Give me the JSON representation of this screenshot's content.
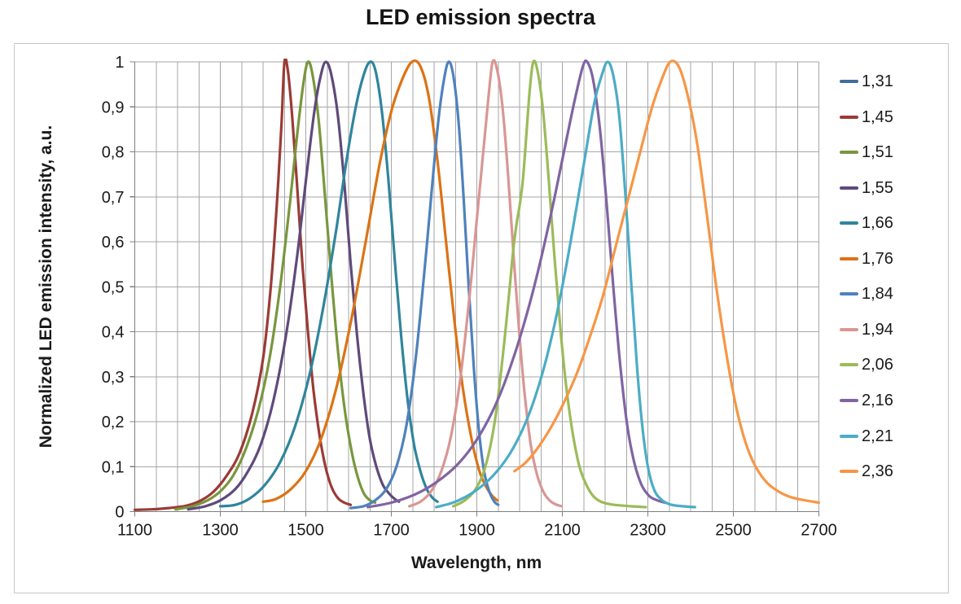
{
  "chart_data": {
    "type": "line",
    "title": "LED emission spectra",
    "xlabel": "Wavelength, nm",
    "ylabel": "Normalized LED emission intensity, a.u.",
    "xlim": [
      1100,
      2700
    ],
    "ylim": [
      0,
      1
    ],
    "x_major_tick_step": 200,
    "x_minor_grid_step": 50,
    "y_tick_step": 0.1,
    "x_tick_labels": [
      "1100",
      "1300",
      "1500",
      "1700",
      "1900",
      "2100",
      "2300",
      "2500",
      "2700"
    ],
    "y_tick_labels": [
      "1",
      "0,9",
      "0,8",
      "0,7",
      "0,6",
      "0,5",
      "0,4",
      "0,3",
      "0,2",
      "0,1",
      "0"
    ],
    "decimal_separator": ",",
    "grid": true,
    "legend_position": "right",
    "series": [
      {
        "name": "1,31",
        "color": "#3F6D9C",
        "peak_nm": 1310,
        "legend_only": true,
        "points": []
      },
      {
        "name": "1,45",
        "color": "#9A3B35",
        "peak_nm": 1450,
        "legend_only": false,
        "points": [
          [
            1100,
            0.004
          ],
          [
            1140,
            0.005
          ],
          [
            1180,
            0.008
          ],
          [
            1220,
            0.013
          ],
          [
            1255,
            0.025
          ],
          [
            1285,
            0.045
          ],
          [
            1315,
            0.08
          ],
          [
            1345,
            0.13
          ],
          [
            1375,
            0.22
          ],
          [
            1400,
            0.34
          ],
          [
            1418,
            0.5
          ],
          [
            1432,
            0.68
          ],
          [
            1443,
            0.86
          ],
          [
            1450,
            1.0
          ],
          [
            1458,
            0.98
          ],
          [
            1468,
            0.88
          ],
          [
            1480,
            0.72
          ],
          [
            1492,
            0.55
          ],
          [
            1505,
            0.4
          ],
          [
            1518,
            0.27
          ],
          [
            1532,
            0.17
          ],
          [
            1546,
            0.1
          ],
          [
            1560,
            0.055
          ],
          [
            1575,
            0.03
          ],
          [
            1590,
            0.02
          ],
          [
            1605,
            0.015
          ]
        ]
      },
      {
        "name": "1,51",
        "color": "#79963E",
        "peak_nm": 1505,
        "legend_only": false,
        "points": [
          [
            1195,
            0.005
          ],
          [
            1235,
            0.012
          ],
          [
            1270,
            0.025
          ],
          [
            1300,
            0.045
          ],
          [
            1330,
            0.08
          ],
          [
            1360,
            0.14
          ],
          [
            1390,
            0.23
          ],
          [
            1415,
            0.34
          ],
          [
            1440,
            0.5
          ],
          [
            1462,
            0.68
          ],
          [
            1480,
            0.84
          ],
          [
            1494,
            0.95
          ],
          [
            1505,
            1.0
          ],
          [
            1516,
            0.97
          ],
          [
            1530,
            0.87
          ],
          [
            1545,
            0.7
          ],
          [
            1560,
            0.52
          ],
          [
            1576,
            0.35
          ],
          [
            1592,
            0.22
          ],
          [
            1608,
            0.13
          ],
          [
            1622,
            0.075
          ],
          [
            1636,
            0.04
          ],
          [
            1650,
            0.025
          ],
          [
            1662,
            0.02
          ]
        ]
      },
      {
        "name": "1,55",
        "color": "#5F4A7A",
        "peak_nm": 1547,
        "legend_only": false,
        "points": [
          [
            1225,
            0.005
          ],
          [
            1265,
            0.012
          ],
          [
            1300,
            0.025
          ],
          [
            1335,
            0.05
          ],
          [
            1365,
            0.09
          ],
          [
            1395,
            0.15
          ],
          [
            1425,
            0.25
          ],
          [
            1455,
            0.4
          ],
          [
            1480,
            0.57
          ],
          [
            1502,
            0.75
          ],
          [
            1520,
            0.89
          ],
          [
            1535,
            0.97
          ],
          [
            1547,
            1.0
          ],
          [
            1560,
            0.97
          ],
          [
            1575,
            0.88
          ],
          [
            1590,
            0.73
          ],
          [
            1605,
            0.55
          ],
          [
            1620,
            0.39
          ],
          [
            1635,
            0.26
          ],
          [
            1650,
            0.16
          ],
          [
            1665,
            0.1
          ],
          [
            1680,
            0.06
          ],
          [
            1695,
            0.04
          ],
          [
            1708,
            0.028
          ],
          [
            1718,
            0.022
          ]
        ]
      },
      {
        "name": "1,66",
        "color": "#2F859C",
        "peak_nm": 1650,
        "legend_only": false,
        "points": [
          [
            1300,
            0.012
          ],
          [
            1335,
            0.015
          ],
          [
            1370,
            0.03
          ],
          [
            1405,
            0.06
          ],
          [
            1440,
            0.11
          ],
          [
            1475,
            0.19
          ],
          [
            1510,
            0.31
          ],
          [
            1540,
            0.45
          ],
          [
            1570,
            0.62
          ],
          [
            1595,
            0.78
          ],
          [
            1617,
            0.9
          ],
          [
            1635,
            0.97
          ],
          [
            1650,
            1.0
          ],
          [
            1663,
            0.98
          ],
          [
            1678,
            0.89
          ],
          [
            1693,
            0.74
          ],
          [
            1708,
            0.56
          ],
          [
            1723,
            0.39
          ],
          [
            1738,
            0.25
          ],
          [
            1753,
            0.15
          ],
          [
            1768,
            0.09
          ],
          [
            1783,
            0.05
          ],
          [
            1797,
            0.03
          ],
          [
            1808,
            0.022
          ]
        ]
      },
      {
        "name": "1,76",
        "color": "#DC7315",
        "peak_nm": 1755,
        "legend_only": false,
        "points": [
          [
            1400,
            0.022
          ],
          [
            1430,
            0.028
          ],
          [
            1465,
            0.05
          ],
          [
            1500,
            0.09
          ],
          [
            1535,
            0.16
          ],
          [
            1570,
            0.27
          ],
          [
            1605,
            0.42
          ],
          [
            1640,
            0.6
          ],
          [
            1672,
            0.77
          ],
          [
            1700,
            0.89
          ],
          [
            1725,
            0.96
          ],
          [
            1748,
            1.0
          ],
          [
            1768,
            0.99
          ],
          [
            1788,
            0.92
          ],
          [
            1808,
            0.78
          ],
          [
            1828,
            0.6
          ],
          [
            1848,
            0.42
          ],
          [
            1868,
            0.27
          ],
          [
            1888,
            0.16
          ],
          [
            1906,
            0.09
          ],
          [
            1922,
            0.055
          ],
          [
            1936,
            0.035
          ],
          [
            1948,
            0.025
          ]
        ]
      },
      {
        "name": "1,84",
        "color": "#4F81BD",
        "peak_nm": 1834,
        "legend_only": false,
        "points": [
          [
            1605,
            0.008
          ],
          [
            1635,
            0.012
          ],
          [
            1662,
            0.025
          ],
          [
            1688,
            0.05
          ],
          [
            1712,
            0.1
          ],
          [
            1735,
            0.19
          ],
          [
            1757,
            0.34
          ],
          [
            1777,
            0.53
          ],
          [
            1795,
            0.72
          ],
          [
            1810,
            0.87
          ],
          [
            1823,
            0.96
          ],
          [
            1834,
            1.0
          ],
          [
            1845,
            0.97
          ],
          [
            1857,
            0.87
          ],
          [
            1869,
            0.7
          ],
          [
            1881,
            0.5
          ],
          [
            1893,
            0.32
          ],
          [
            1905,
            0.18
          ],
          [
            1917,
            0.09
          ],
          [
            1929,
            0.045
          ],
          [
            1941,
            0.022
          ],
          [
            1950,
            0.015
          ]
        ]
      },
      {
        "name": "1,94",
        "color": "#D99694",
        "peak_nm": 1937,
        "legend_only": false,
        "points": [
          [
            1742,
            0.012
          ],
          [
            1768,
            0.022
          ],
          [
            1793,
            0.045
          ],
          [
            1817,
            0.09
          ],
          [
            1840,
            0.17
          ],
          [
            1862,
            0.3
          ],
          [
            1882,
            0.47
          ],
          [
            1900,
            0.65
          ],
          [
            1915,
            0.8
          ],
          [
            1927,
            0.92
          ],
          [
            1937,
            1.0
          ],
          [
            1948,
            0.98
          ],
          [
            1960,
            0.9
          ],
          [
            1973,
            0.75
          ],
          [
            1986,
            0.57
          ],
          [
            1999,
            0.4
          ],
          [
            2012,
            0.26
          ],
          [
            2026,
            0.15
          ],
          [
            2040,
            0.085
          ],
          [
            2055,
            0.045
          ],
          [
            2070,
            0.025
          ],
          [
            2085,
            0.016
          ],
          [
            2098,
            0.012
          ]
        ]
      },
      {
        "name": "2,06",
        "color": "#9BBB59",
        "peak_nm": 2032,
        "legend_only": false,
        "points": [
          [
            1845,
            0.012
          ],
          [
            1872,
            0.025
          ],
          [
            1897,
            0.05
          ],
          [
            1920,
            0.1
          ],
          [
            1942,
            0.2
          ],
          [
            1960,
            0.34
          ],
          [
            1975,
            0.48
          ],
          [
            1985,
            0.58
          ],
          [
            1993,
            0.64
          ],
          [
            2000,
            0.68
          ],
          [
            2008,
            0.74
          ],
          [
            2016,
            0.84
          ],
          [
            2024,
            0.94
          ],
          [
            2032,
            1.0
          ],
          [
            2042,
            0.98
          ],
          [
            2055,
            0.89
          ],
          [
            2068,
            0.74
          ],
          [
            2082,
            0.56
          ],
          [
            2096,
            0.4
          ],
          [
            2110,
            0.27
          ],
          [
            2125,
            0.17
          ],
          [
            2140,
            0.1
          ],
          [
            2156,
            0.06
          ],
          [
            2172,
            0.035
          ],
          [
            2190,
            0.022
          ],
          [
            2215,
            0.016
          ],
          [
            2245,
            0.013
          ],
          [
            2275,
            0.011
          ],
          [
            2295,
            0.01
          ]
        ]
      },
      {
        "name": "2,16",
        "color": "#8064A2",
        "peak_nm": 2155,
        "legend_only": false,
        "points": [
          [
            1645,
            0.01
          ],
          [
            1700,
            0.02
          ],
          [
            1755,
            0.038
          ],
          [
            1805,
            0.065
          ],
          [
            1855,
            0.105
          ],
          [
            1900,
            0.16
          ],
          [
            1945,
            0.24
          ],
          [
            1985,
            0.34
          ],
          [
            2020,
            0.45
          ],
          [
            2052,
            0.57
          ],
          [
            2082,
            0.7
          ],
          [
            2108,
            0.82
          ],
          [
            2130,
            0.92
          ],
          [
            2148,
            0.99
          ],
          [
            2158,
            1.0
          ],
          [
            2172,
            0.96
          ],
          [
            2188,
            0.85
          ],
          [
            2204,
            0.68
          ],
          [
            2220,
            0.49
          ],
          [
            2236,
            0.32
          ],
          [
            2252,
            0.19
          ],
          [
            2268,
            0.11
          ],
          [
            2285,
            0.06
          ],
          [
            2303,
            0.035
          ],
          [
            2322,
            0.025
          ],
          [
            2340,
            0.02
          ]
        ]
      },
      {
        "name": "2,21",
        "color": "#4BACC6",
        "peak_nm": 2206,
        "legend_only": false,
        "points": [
          [
            1805,
            0.01
          ],
          [
            1850,
            0.022
          ],
          [
            1895,
            0.045
          ],
          [
            1938,
            0.08
          ],
          [
            1978,
            0.13
          ],
          [
            2015,
            0.2
          ],
          [
            2048,
            0.29
          ],
          [
            2078,
            0.4
          ],
          [
            2106,
            0.53
          ],
          [
            2132,
            0.67
          ],
          [
            2155,
            0.8
          ],
          [
            2175,
            0.91
          ],
          [
            2192,
            0.97
          ],
          [
            2206,
            1.0
          ],
          [
            2219,
            0.97
          ],
          [
            2233,
            0.88
          ],
          [
            2247,
            0.71
          ],
          [
            2261,
            0.51
          ],
          [
            2274,
            0.33
          ],
          [
            2287,
            0.19
          ],
          [
            2300,
            0.1
          ],
          [
            2314,
            0.05
          ],
          [
            2330,
            0.028
          ],
          [
            2352,
            0.016
          ],
          [
            2380,
            0.012
          ],
          [
            2410,
            0.01
          ]
        ]
      },
      {
        "name": "2,36",
        "color": "#F79646",
        "peak_nm": 2355,
        "legend_only": false,
        "points": [
          [
            1988,
            0.09
          ],
          [
            2015,
            0.11
          ],
          [
            2045,
            0.145
          ],
          [
            2075,
            0.19
          ],
          [
            2105,
            0.245
          ],
          [
            2135,
            0.31
          ],
          [
            2165,
            0.39
          ],
          [
            2195,
            0.48
          ],
          [
            2225,
            0.59
          ],
          [
            2255,
            0.7
          ],
          [
            2285,
            0.81
          ],
          [
            2310,
            0.9
          ],
          [
            2332,
            0.96
          ],
          [
            2352,
            1.0
          ],
          [
            2372,
            0.99
          ],
          [
            2392,
            0.93
          ],
          [
            2415,
            0.82
          ],
          [
            2438,
            0.66
          ],
          [
            2460,
            0.5
          ],
          [
            2482,
            0.36
          ],
          [
            2505,
            0.24
          ],
          [
            2528,
            0.155
          ],
          [
            2552,
            0.1
          ],
          [
            2578,
            0.065
          ],
          [
            2605,
            0.045
          ],
          [
            2635,
            0.032
          ],
          [
            2668,
            0.025
          ],
          [
            2700,
            0.02
          ]
        ]
      }
    ]
  },
  "style": {
    "background": "#FFFFFF",
    "grid_color": "#A6A6A6",
    "axis_color": "#7F7F7F",
    "frame_border_color": "#C6C6C6",
    "text_color": "#1A1A1A",
    "line_width": 3.2
  }
}
